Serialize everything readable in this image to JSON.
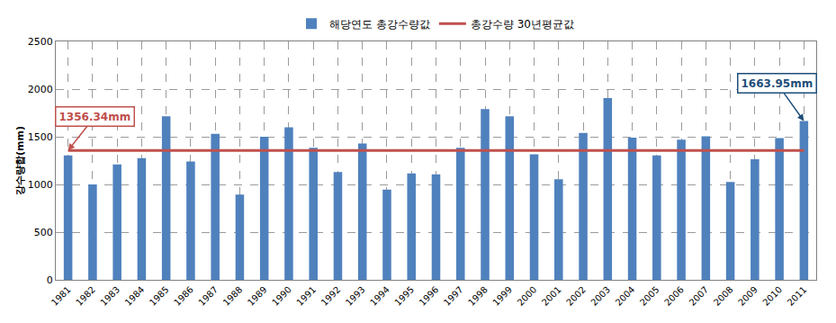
{
  "chart_data": {
    "type": "bar",
    "y_label": "강수량합(mm)",
    "categories": [
      "1981",
      "1982",
      "1983",
      "1984",
      "1985",
      "1986",
      "1987",
      "1988",
      "1989",
      "1990",
      "1991",
      "1992",
      "1993",
      "1994",
      "1995",
      "1996",
      "1997",
      "1998",
      "1999",
      "2000",
      "2001",
      "2002",
      "2003",
      "2004",
      "2005",
      "2006",
      "2007",
      "2008",
      "2009",
      "2010",
      "2011"
    ],
    "series": [
      {
        "name": "해당연도 총강수량값",
        "type": "bar",
        "color": "#4f81bd",
        "values": [
          1305,
          1000,
          1210,
          1275,
          1715,
          1240,
          1530,
          895,
          1500,
          1600,
          1385,
          1130,
          1430,
          945,
          1115,
          1105,
          1385,
          1790,
          1715,
          1315,
          1055,
          1540,
          1905,
          1490,
          1305,
          1470,
          1505,
          1025,
          1265,
          1485,
          1663.95
        ]
      },
      {
        "name": "총강수량 30년평균값",
        "type": "line",
        "color": "#c0504d",
        "values": [
          1356.34,
          1356.34,
          1356.34,
          1356.34,
          1356.34,
          1356.34,
          1356.34,
          1356.34,
          1356.34,
          1356.34,
          1356.34,
          1356.34,
          1356.34,
          1356.34,
          1356.34,
          1356.34,
          1356.34,
          1356.34,
          1356.34,
          1356.34,
          1356.34,
          1356.34,
          1356.34,
          1356.34,
          1356.34,
          1356.34,
          1356.34,
          1356.34,
          1356.34,
          1356.34,
          1356.34
        ]
      }
    ],
    "annotations": [
      {
        "text": "1356.34mm",
        "category": "1981",
        "value": 1356.34,
        "color": "#c0504d"
      },
      {
        "text": "1663.95mm",
        "category": "2011",
        "value": 1663.95,
        "color": "#1f4e79"
      }
    ],
    "ylim": [
      0,
      2500
    ],
    "yticks": [
      0,
      500,
      1000,
      1500,
      2000,
      2500
    ],
    "grid": true,
    "legend": "top"
  }
}
